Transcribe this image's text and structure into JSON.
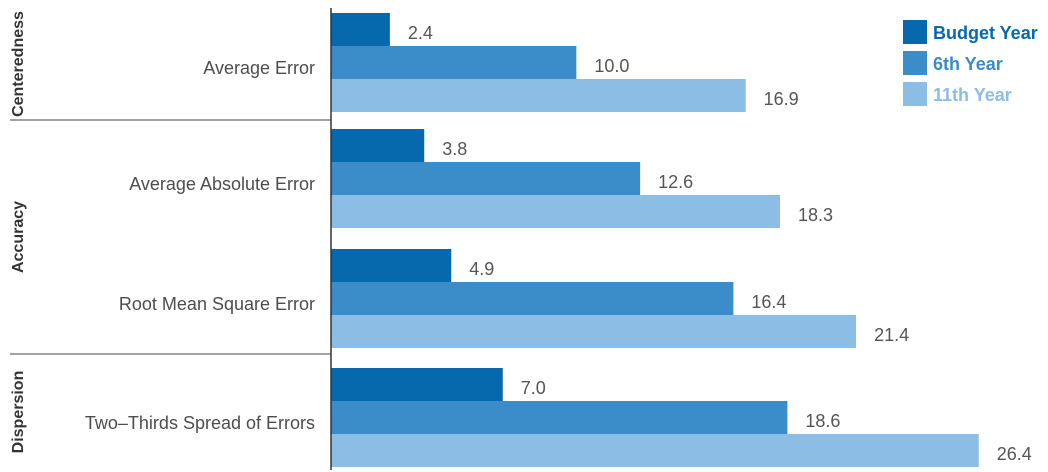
{
  "chart_data": {
    "type": "bar",
    "orientation": "horizontal",
    "categories": [
      "Average Error",
      "Average Absolute Error",
      "Root Mean Square Error",
      "Two–Thirds Spread of Errors"
    ],
    "groups": [
      {
        "label": "Centeredness",
        "categories": [
          "Average Error"
        ]
      },
      {
        "label": "Accuracy",
        "categories": [
          "Average Absolute Error",
          "Root Mean Square Error"
        ]
      },
      {
        "label": "Dispersion",
        "categories": [
          "Two–Thirds Spread of Errors"
        ]
      }
    ],
    "series": [
      {
        "name": "Budget Year",
        "color": "#0769ad",
        "values": [
          2.4,
          3.8,
          4.9,
          7.0
        ]
      },
      {
        "name": "6th Year",
        "color": "#3a8dc8",
        "values": [
          10.0,
          12.6,
          16.4,
          18.6
        ]
      },
      {
        "name": "11th Year",
        "color": "#8cbde5",
        "values": [
          16.9,
          18.3,
          21.4,
          26.4
        ]
      }
    ],
    "xlim": [
      0,
      28
    ],
    "grid": false,
    "legend_position": "top-right"
  }
}
